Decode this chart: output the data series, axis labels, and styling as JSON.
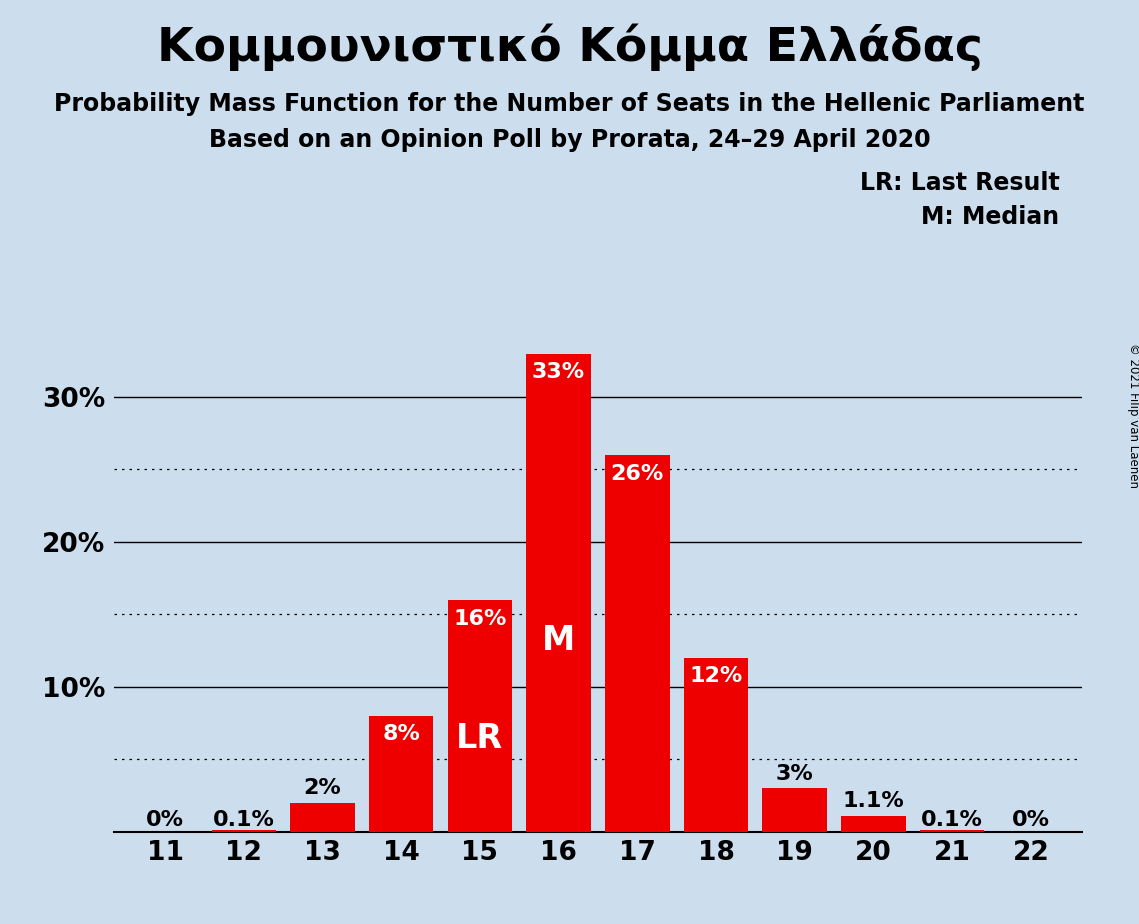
{
  "title": "Κομμουνιστικό Κόμμα Ελλάδας",
  "subtitle1": "Probability Mass Function for the Number of Seats in the Hellenic Parliament",
  "subtitle2": "Based on an Opinion Poll by Prorata, 24–29 April 2020",
  "copyright": "© 2021 Filip van Laenen",
  "seats": [
    11,
    12,
    13,
    14,
    15,
    16,
    17,
    18,
    19,
    20,
    21,
    22
  ],
  "probabilities": [
    0.0,
    0.001,
    0.02,
    0.08,
    0.16,
    0.33,
    0.26,
    0.12,
    0.03,
    0.011,
    0.001,
    0.0
  ],
  "bar_labels": [
    "0%",
    "0.1%",
    "2%",
    "8%",
    "16%",
    "33%",
    "26%",
    "12%",
    "3%",
    "1.1%",
    "0.1%",
    "0%"
  ],
  "bar_color": "#ee0000",
  "background_color": "#ccdded",
  "text_color": "#000000",
  "label_inside_color": "#ffffff",
  "lr_seat": 15,
  "median_seat": 16,
  "lr_label": "LR",
  "median_label": "M",
  "legend_line1": "LR: Last Result",
  "legend_line2": "M: Median",
  "ylim": [
    0,
    0.37
  ],
  "yticks": [
    0.0,
    0.1,
    0.2,
    0.3
  ],
  "ytick_labels": [
    "",
    "10%",
    "20%",
    "30%"
  ],
  "solid_gridlines": [
    0.1,
    0.2,
    0.3
  ],
  "dotted_gridlines": [
    0.05,
    0.15,
    0.25
  ],
  "title_fontsize": 34,
  "subtitle_fontsize": 17,
  "tick_fontsize": 19,
  "legend_fontsize": 17,
  "bar_label_fontsize": 16,
  "lr_m_fontsize": 24
}
